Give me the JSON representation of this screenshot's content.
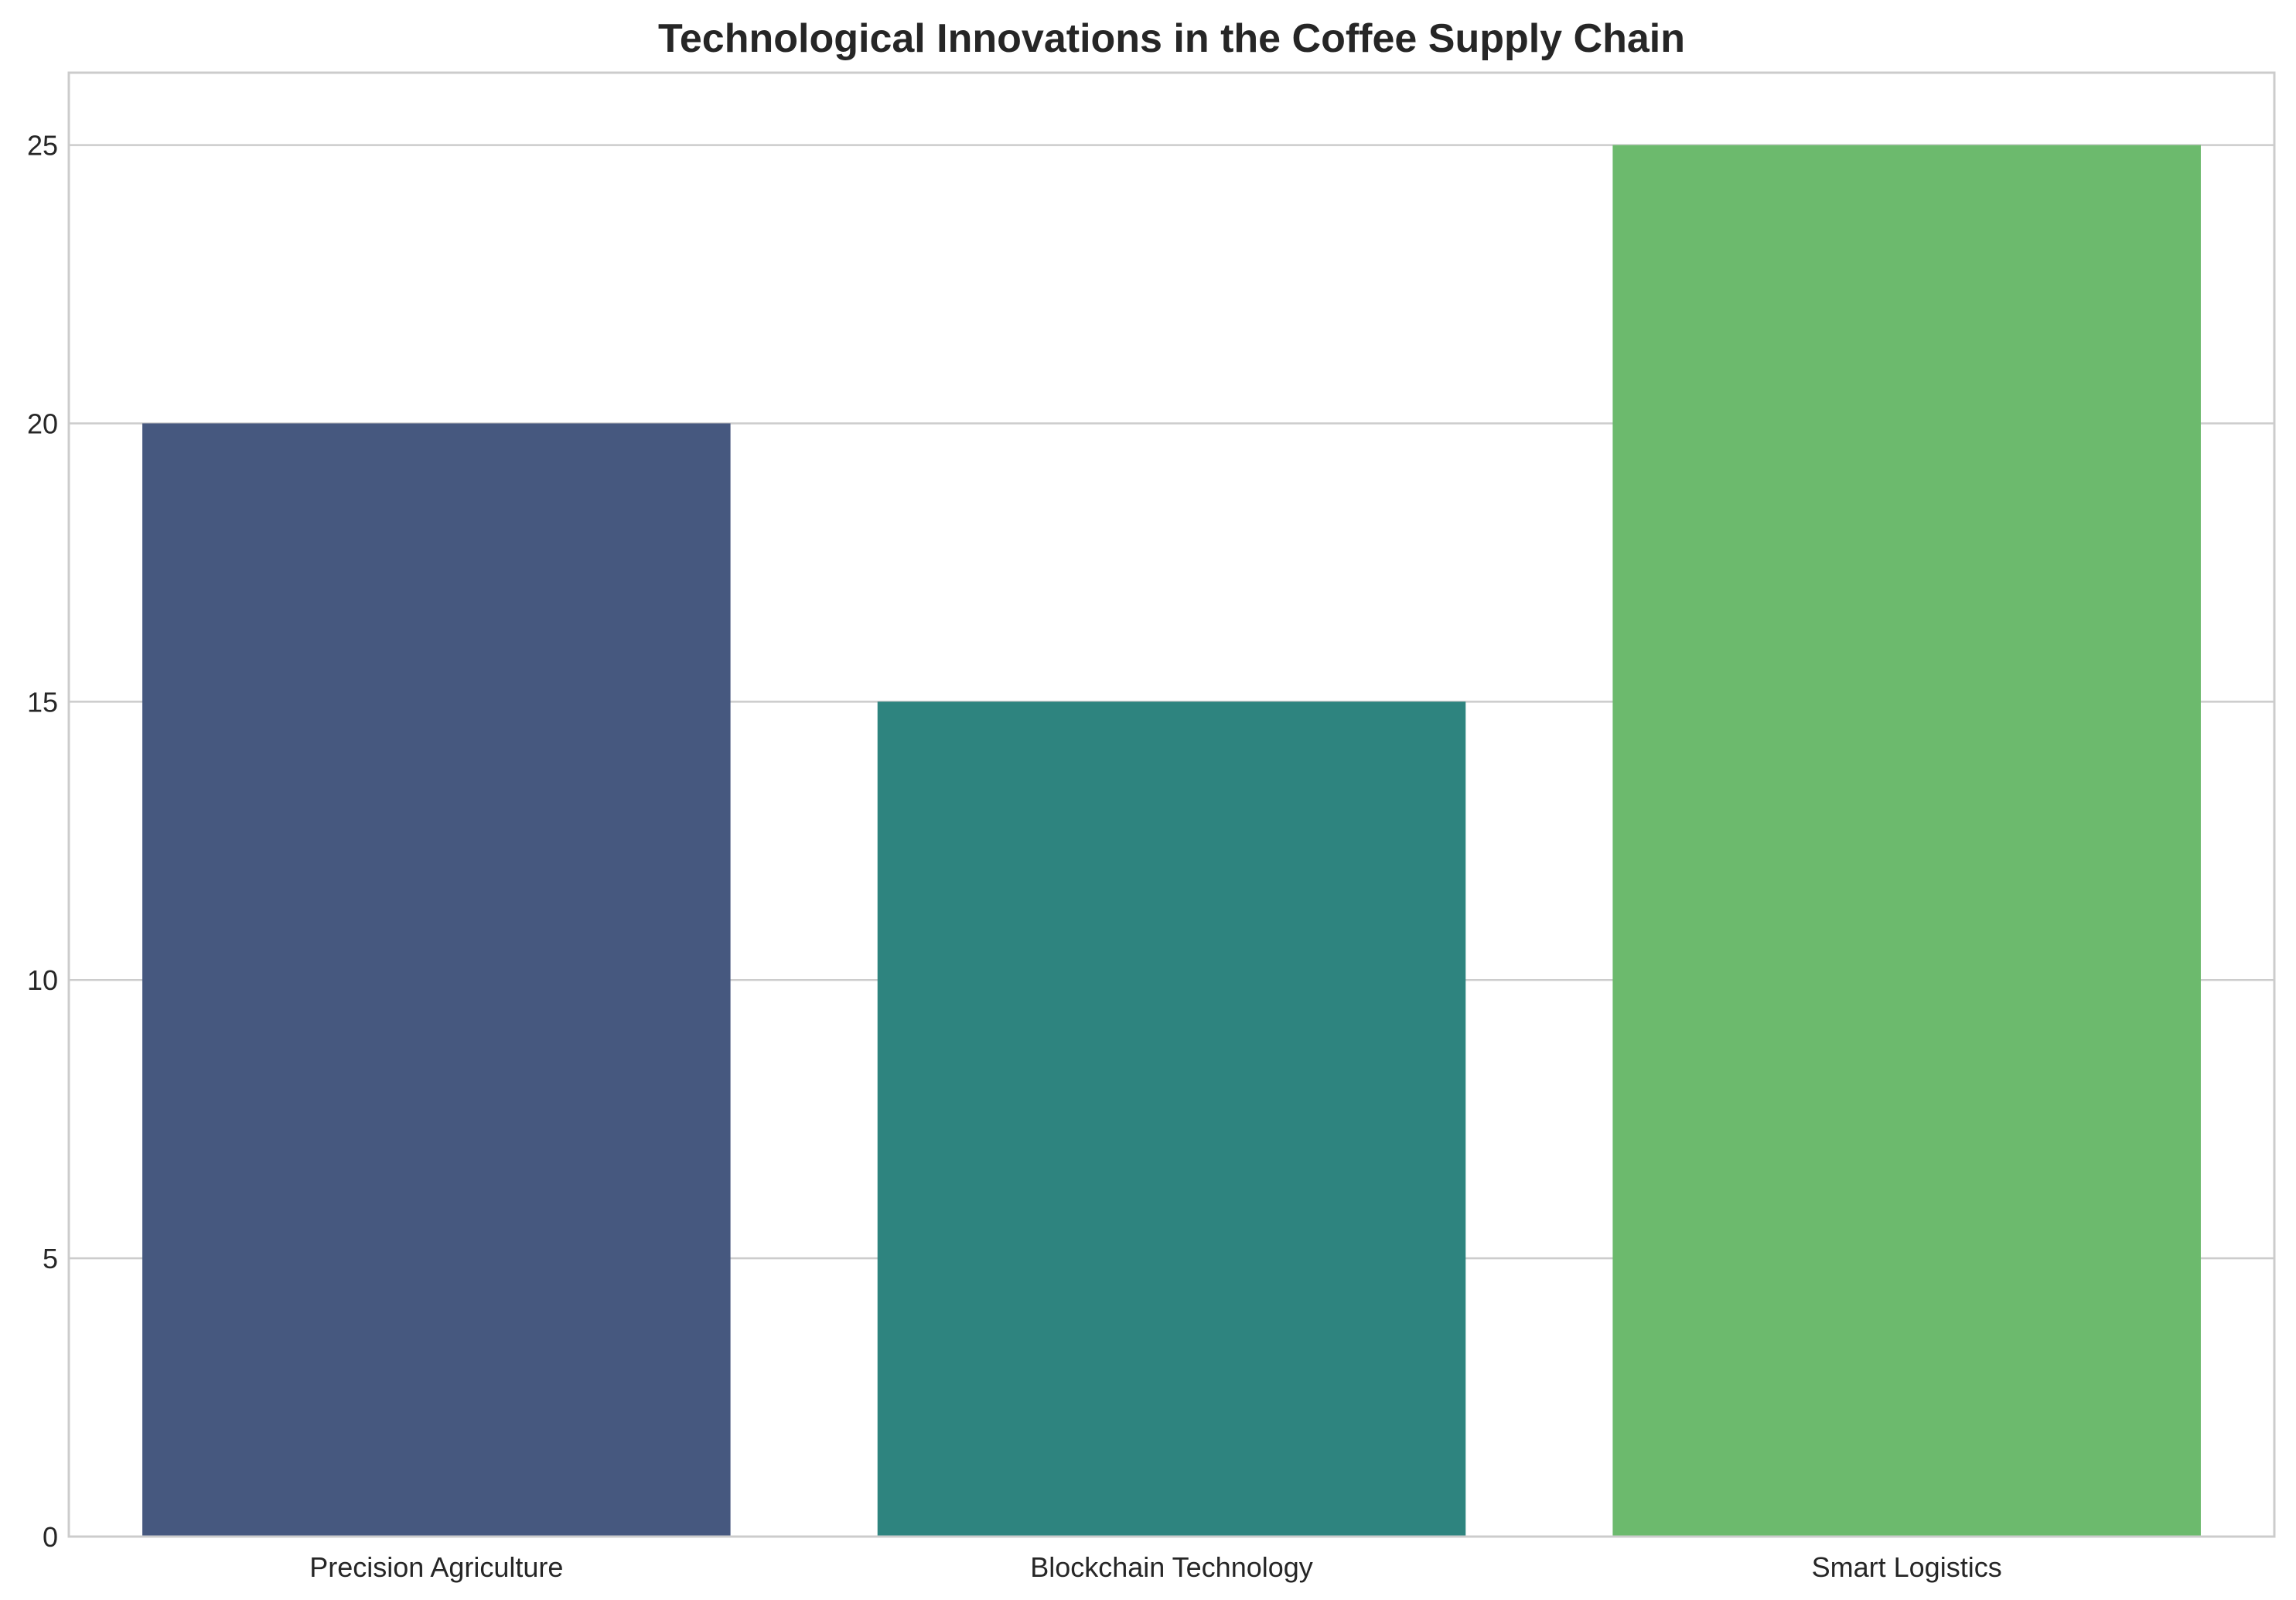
{
  "chart_data": {
    "type": "bar",
    "title": "Technological Innovations in the Coffee Supply Chain",
    "xlabel": "",
    "ylabel": "",
    "categories": [
      "Precision Agriculture",
      "Blockchain Technology",
      "Smart Logistics"
    ],
    "values": [
      20,
      15,
      25
    ],
    "colors": [
      "#46587f",
      "#2e847f",
      "#6cba6d"
    ],
    "ylim": [
      0,
      26.3
    ],
    "yticks": [
      0,
      5,
      10,
      15,
      20,
      25
    ],
    "grid": true,
    "legend": "none"
  }
}
